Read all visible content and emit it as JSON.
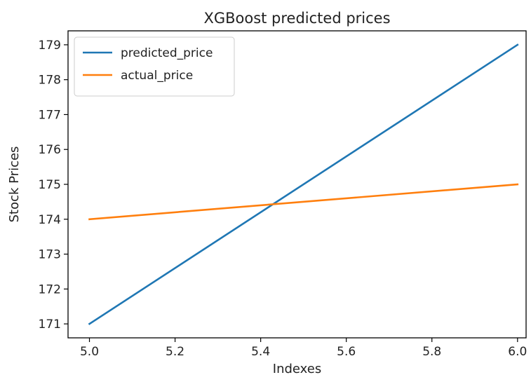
{
  "chart_data": {
    "type": "line",
    "title": "XGBoost predicted prices",
    "xlabel": "Indexes",
    "ylabel": "Stock Prices",
    "xlim": [
      4.95,
      6.02
    ],
    "ylim": [
      170.6,
      179.4
    ],
    "x_ticks": [
      5.0,
      5.2,
      5.4,
      5.6,
      5.8,
      6.0
    ],
    "x_tick_labels": [
      "5.0",
      "5.2",
      "5.4",
      "5.6",
      "5.8",
      "6.0"
    ],
    "y_ticks": [
      171,
      172,
      173,
      174,
      175,
      176,
      177,
      178,
      179
    ],
    "y_tick_labels": [
      "171",
      "172",
      "173",
      "174",
      "175",
      "176",
      "177",
      "178",
      "179"
    ],
    "grid": false,
    "legend_position": "top-left",
    "series": [
      {
        "name": "predicted_price",
        "color": "#1f77b4",
        "x": [
          5.0,
          6.0
        ],
        "y": [
          171,
          179
        ]
      },
      {
        "name": "actual_price",
        "color": "#ff7f0e",
        "x": [
          5.0,
          6.0
        ],
        "y": [
          174,
          175
        ]
      }
    ]
  }
}
